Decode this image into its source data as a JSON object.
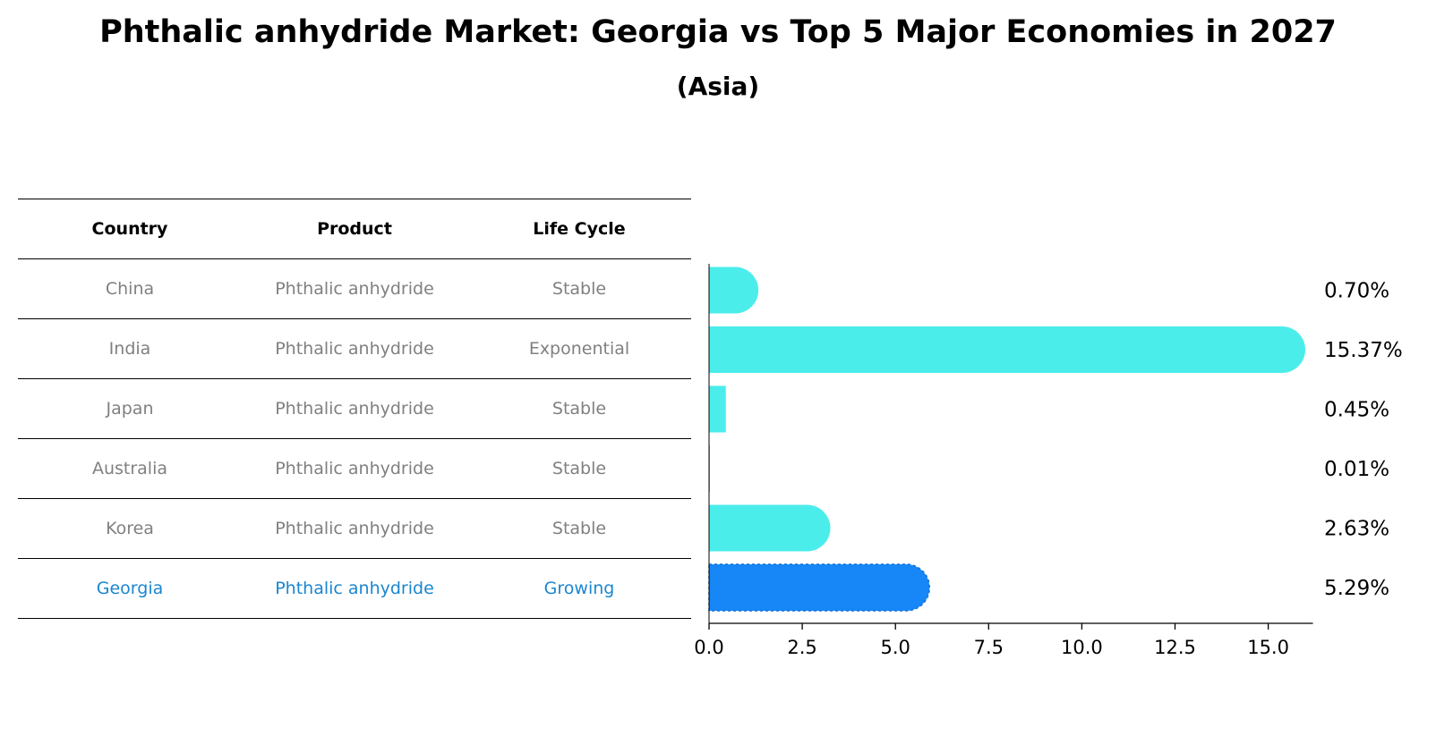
{
  "title": "Phthalic anhydride Market: Georgia vs Top 5 Major Economies in 2027",
  "subtitle": "(Asia)",
  "table": {
    "headers": [
      "Country",
      "Product",
      "Life Cycle"
    ],
    "rows": [
      {
        "country": "China",
        "product": "Phthalic anhydride",
        "life_cycle": "Stable"
      },
      {
        "country": "India",
        "product": "Phthalic anhydride",
        "life_cycle": "Exponential"
      },
      {
        "country": "Japan",
        "product": "Phthalic anhydride",
        "life_cycle": "Stable"
      },
      {
        "country": "Australia",
        "product": "Phthalic anhydride",
        "life_cycle": "Stable"
      },
      {
        "country": "Korea",
        "product": "Phthalic anhydride",
        "life_cycle": "Stable"
      },
      {
        "country": "Georgia",
        "product": "Phthalic anhydride",
        "life_cycle": "Growing"
      }
    ]
  },
  "chart_data": {
    "type": "bar",
    "orientation": "horizontal",
    "categories": [
      "China",
      "India",
      "Japan",
      "Australia",
      "Korea",
      "Georgia"
    ],
    "values": [
      0.7,
      15.37,
      0.45,
      0.01,
      2.63,
      5.29
    ],
    "value_labels": [
      "0.70%",
      "15.37%",
      "0.45%",
      "0.01%",
      "2.63%",
      "5.29%"
    ],
    "xlim": [
      0,
      16.2
    ],
    "xticks": [
      "0.0",
      "2.5",
      "5.0",
      "7.5",
      "10.0",
      "12.5",
      "15.0"
    ],
    "xtick_values": [
      0,
      2.5,
      5,
      7.5,
      10,
      12.5,
      15
    ],
    "highlight": "Georgia",
    "colors": {
      "default": "#4BEDEB",
      "highlight": "#1787F7",
      "table_highlight_text": "#1a86d0"
    }
  }
}
